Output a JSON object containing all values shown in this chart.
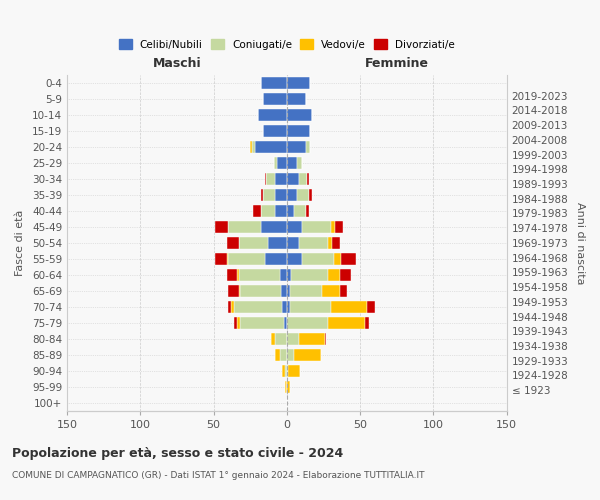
{
  "age_groups": [
    "100+",
    "95-99",
    "90-94",
    "85-89",
    "80-84",
    "75-79",
    "70-74",
    "65-69",
    "60-64",
    "55-59",
    "50-54",
    "45-49",
    "40-44",
    "35-39",
    "30-34",
    "25-29",
    "20-24",
    "15-19",
    "10-14",
    "5-9",
    "0-4"
  ],
  "birth_years": [
    "≤ 1923",
    "1924-1928",
    "1929-1933",
    "1934-1938",
    "1939-1943",
    "1944-1948",
    "1949-1953",
    "1954-1958",
    "1959-1963",
    "1964-1968",
    "1969-1973",
    "1974-1978",
    "1979-1983",
    "1984-1988",
    "1989-1993",
    "1994-1998",
    "1999-2003",
    "2004-2008",
    "2009-2013",
    "2014-2018",
    "2019-2023"
  ],
  "male": {
    "celibi": [
      0,
      0,
      0,
      0,
      0,
      2,
      3,
      4,
      5,
      15,
      13,
      18,
      8,
      8,
      8,
      7,
      22,
      16,
      20,
      16,
      18
    ],
    "coniugati": [
      0,
      0,
      1,
      5,
      8,
      30,
      33,
      28,
      28,
      25,
      20,
      22,
      10,
      8,
      6,
      2,
      2,
      0,
      0,
      0,
      0
    ],
    "vedovi": [
      0,
      1,
      2,
      3,
      3,
      2,
      2,
      1,
      1,
      1,
      0,
      0,
      0,
      0,
      0,
      0,
      1,
      0,
      0,
      0,
      0
    ],
    "divorziati": [
      0,
      0,
      0,
      0,
      0,
      2,
      2,
      7,
      7,
      8,
      8,
      9,
      5,
      2,
      1,
      0,
      0,
      0,
      0,
      0,
      0
    ]
  },
  "female": {
    "nubili": [
      0,
      0,
      0,
      0,
      0,
      0,
      2,
      2,
      3,
      10,
      8,
      10,
      5,
      7,
      8,
      7,
      13,
      16,
      17,
      13,
      16
    ],
    "coniugate": [
      0,
      0,
      1,
      5,
      8,
      28,
      28,
      22,
      25,
      22,
      20,
      20,
      8,
      8,
      6,
      3,
      3,
      0,
      0,
      0,
      0
    ],
    "vedove": [
      0,
      2,
      8,
      18,
      18,
      25,
      25,
      12,
      8,
      5,
      3,
      3,
      0,
      0,
      0,
      0,
      0,
      0,
      0,
      0,
      0
    ],
    "divorziate": [
      0,
      0,
      0,
      0,
      1,
      3,
      5,
      5,
      8,
      10,
      5,
      5,
      2,
      2,
      1,
      0,
      0,
      0,
      0,
      0,
      0
    ]
  },
  "colors": {
    "celibi": "#4472c4",
    "coniugati": "#c5d9a0",
    "vedovi": "#ffc000",
    "divorziati": "#cc0000"
  },
  "xlim": 150,
  "title": "Popolazione per età, sesso e stato civile - 2024",
  "subtitle": "COMUNE DI CAMPAGNATICO (GR) - Dati ISTAT 1° gennaio 2024 - Elaborazione TUTTITALIA.IT",
  "ylabel_left": "Fasce di età",
  "ylabel_right": "Anni di nascita",
  "xlabel_male": "Maschi",
  "xlabel_female": "Femmine",
  "legend_labels": [
    "Celibi/Nubili",
    "Coniugati/e",
    "Vedovi/e",
    "Divorziati/e"
  ],
  "bg_color": "#f8f8f8"
}
